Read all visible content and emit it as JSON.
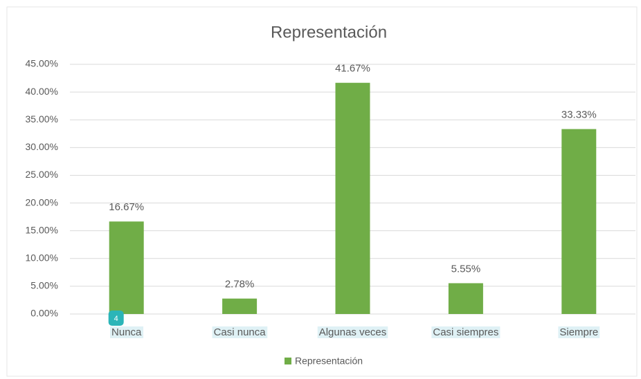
{
  "chart_data": {
    "type": "bar",
    "title": "Representación",
    "categories": [
      "Nunca",
      "Casi nunca",
      "Algunas veces",
      "Casi siempres",
      "Siempre"
    ],
    "values": [
      16.67,
      2.78,
      41.67,
      5.55,
      33.33
    ],
    "value_labels": [
      "16.67%",
      "2.78%",
      "41.67%",
      "5.55%",
      "33.33%"
    ],
    "series_name": "Representación",
    "color": "#70ad47",
    "ylim": [
      0,
      45
    ],
    "yticks": [
      {
        "value": 0,
        "label": "0.00%"
      },
      {
        "value": 5,
        "label": "5.00%"
      },
      {
        "value": 10,
        "label": "10.00%"
      },
      {
        "value": 15,
        "label": "15.00%"
      },
      {
        "value": 20,
        "label": "20.00%"
      },
      {
        "value": 25,
        "label": "25.00%"
      },
      {
        "value": 30,
        "label": "30.00%"
      },
      {
        "value": 35,
        "label": "35.00%"
      },
      {
        "value": 40,
        "label": "40.00%"
      },
      {
        "value": 45,
        "label": "45.00%"
      }
    ],
    "grid": true,
    "legend": "bottom",
    "badge": "4"
  }
}
